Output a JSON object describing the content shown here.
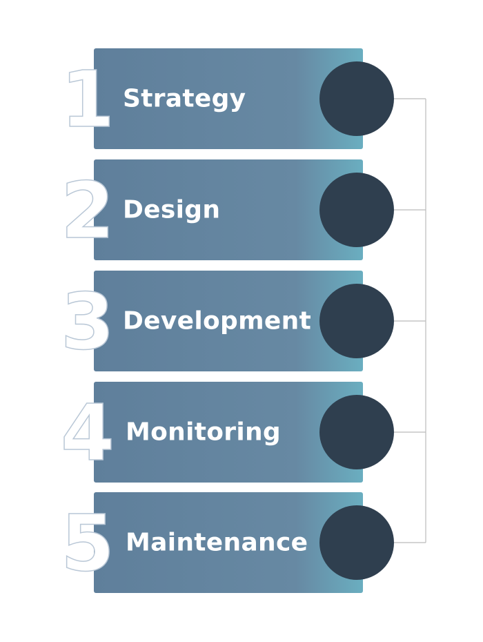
{
  "colors": {
    "box_start": "#5f7f9b",
    "box_mid": "#6789a3",
    "box_end": "#6aaec0",
    "circle": "#2f3f4f",
    "numeral_outline": "#b9c7d6",
    "connector": "#bbbbbb"
  },
  "steps": [
    {
      "number": "1",
      "label": "Strategy"
    },
    {
      "number": "2",
      "label": "Design"
    },
    {
      "number": "3",
      "label": "Development"
    },
    {
      "number": "4",
      "label": "Monitoring"
    },
    {
      "number": "5",
      "label": "Maintenance"
    }
  ]
}
